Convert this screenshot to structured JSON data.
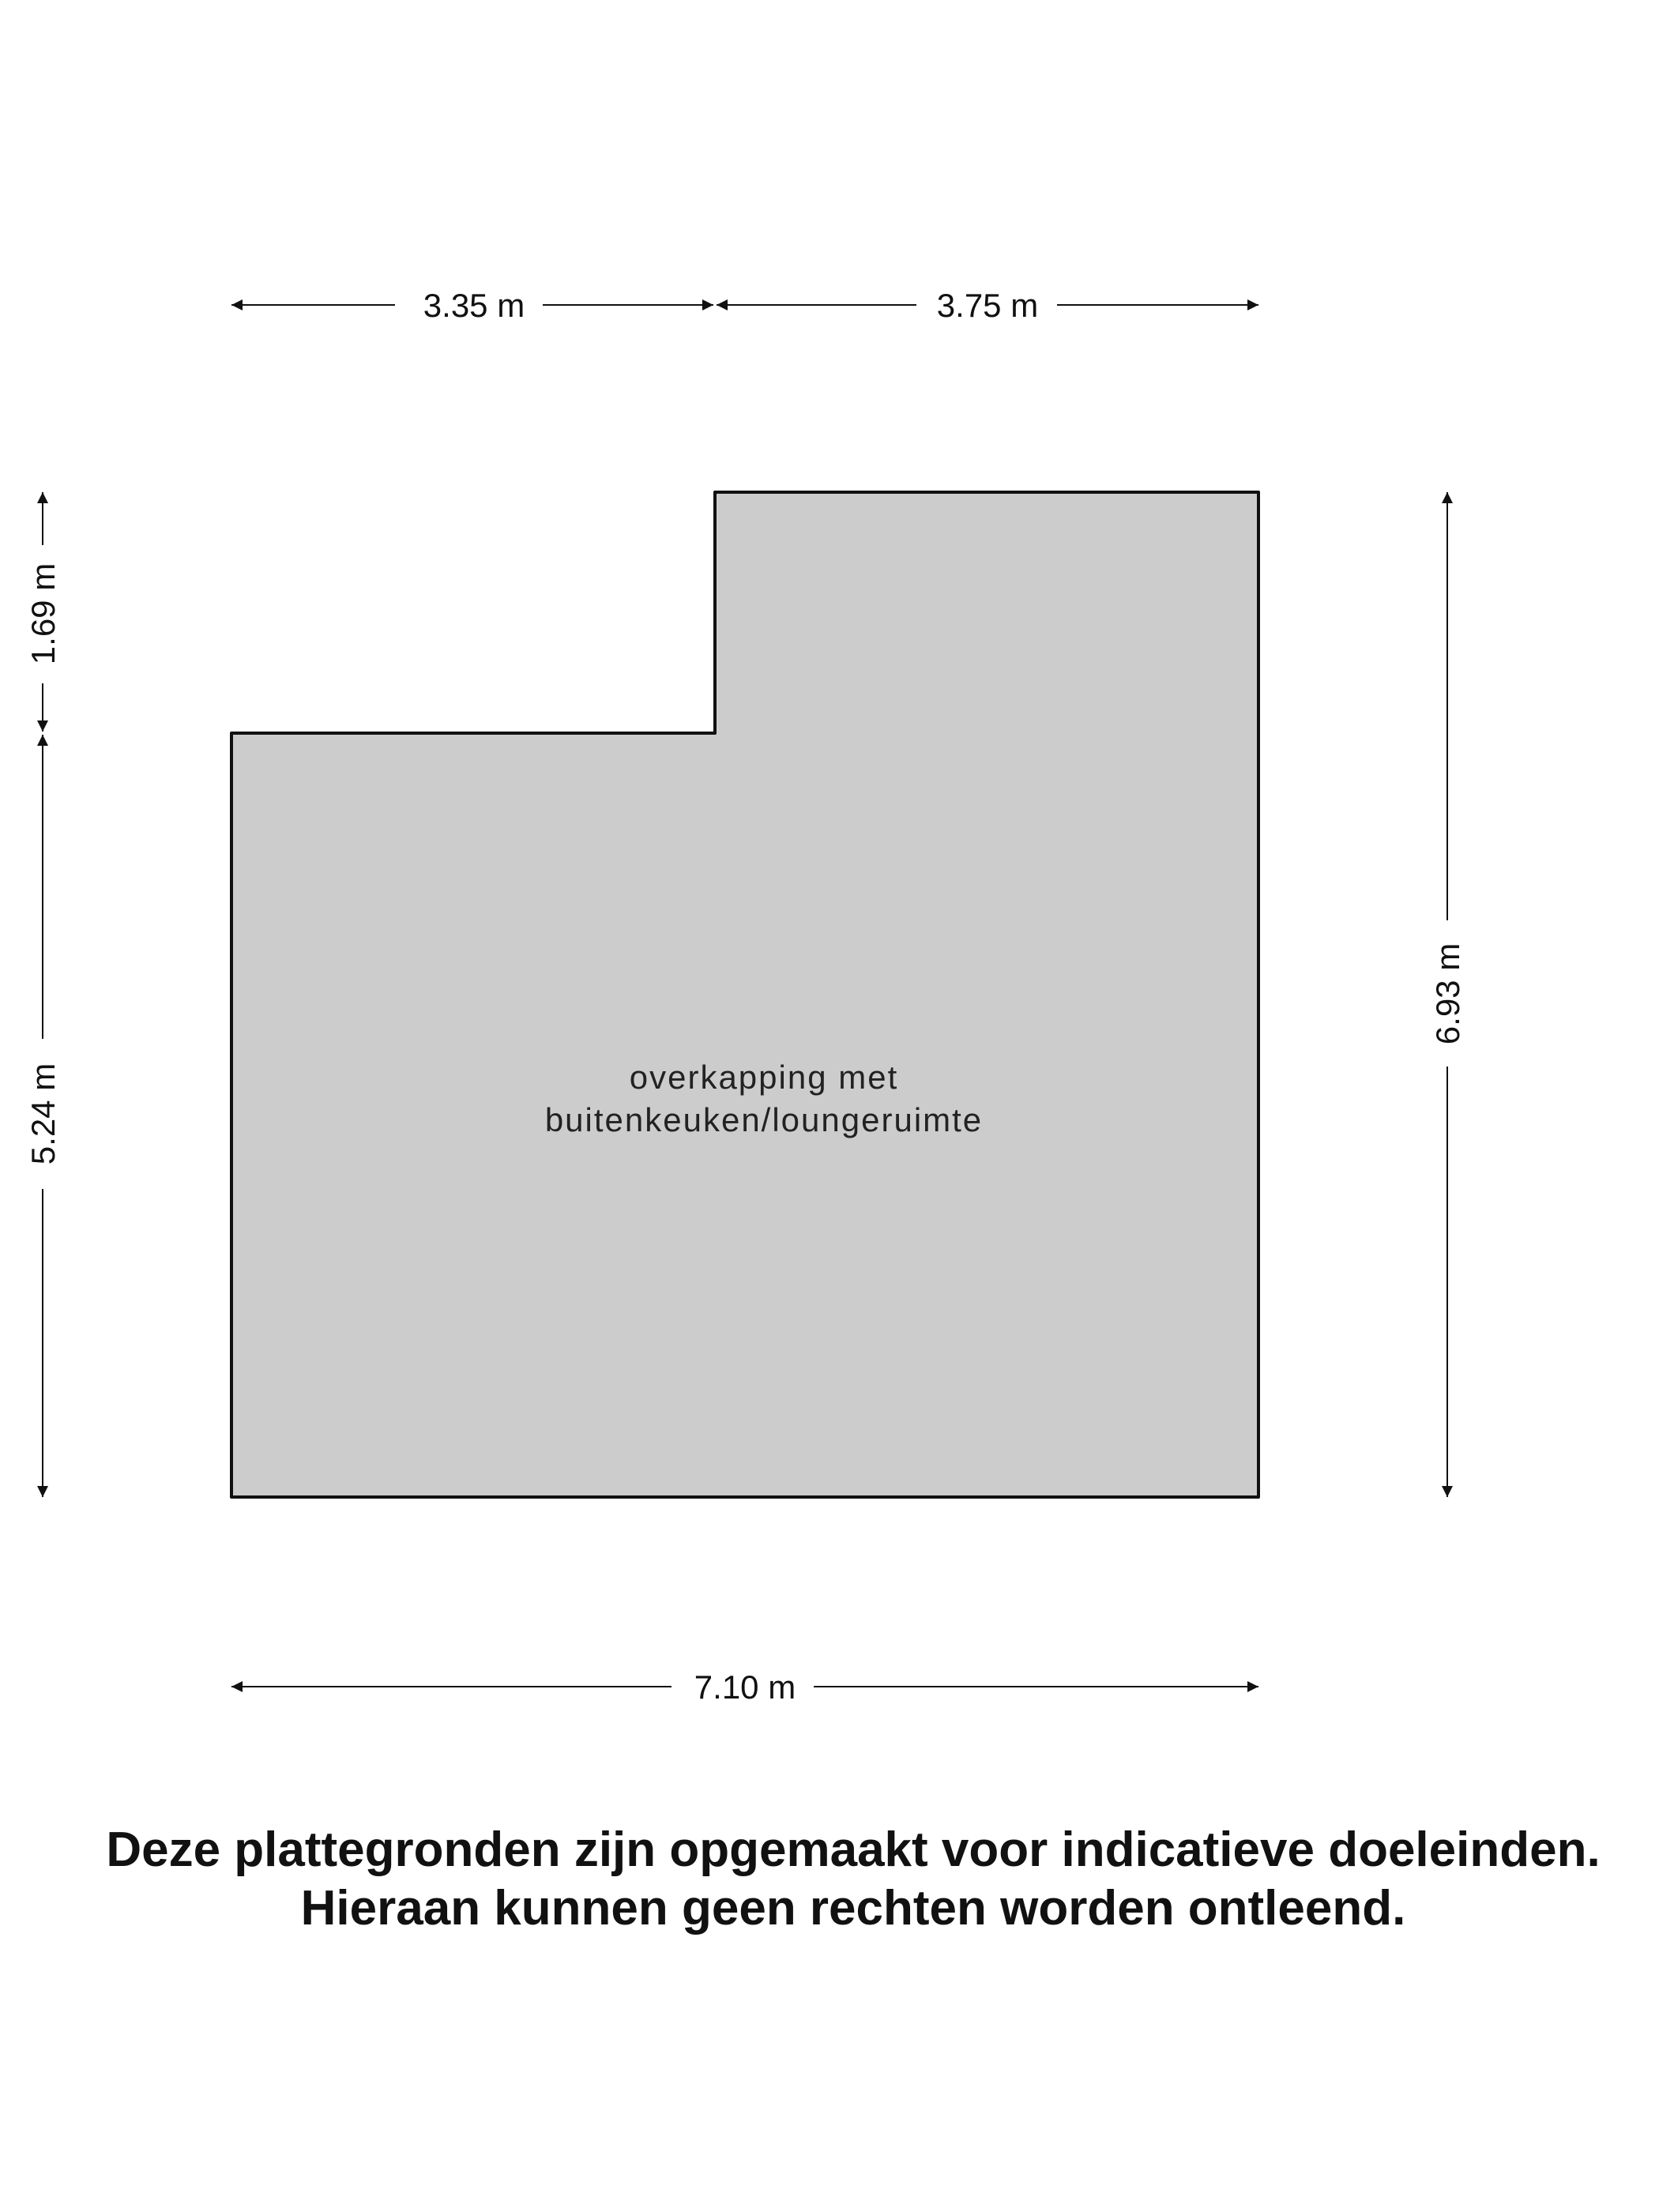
{
  "floorplan": {
    "room_label_line1": "overkapping met",
    "room_label_line2": "buitenkeuken/loungeruimte",
    "fill_color": "#cccccc",
    "stroke_color": "#111111",
    "dimensions": {
      "top_left": "3.35 m",
      "top_right": "3.75 m",
      "bottom": "7.10 m",
      "left_top": "1.69 m",
      "left_bottom": "5.24 m",
      "right": "6.93 m"
    }
  },
  "disclaimer": {
    "line1": "Deze plattegronden zijn opgemaakt voor indicatieve doeleinden.",
    "line2": "Hieraan kunnen geen rechten worden ontleend."
  }
}
